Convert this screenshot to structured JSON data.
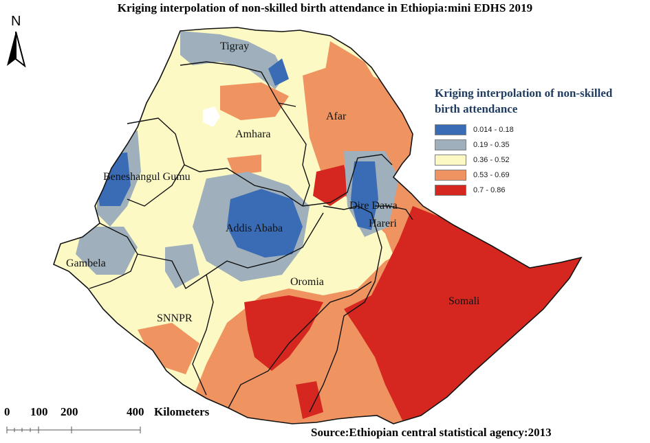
{
  "title": "Kriging interpolation of non-skilled birth attendance in Ethiopia:mini EDHS 2019",
  "north_arrow": {
    "letter": "N"
  },
  "legend": {
    "title_line1": "Kriging interpolation of non-skilled",
    "title_line2": "birth attendance",
    "items": [
      {
        "label": "0.014 - 0.18",
        "color": "#3a6cb5"
      },
      {
        "label": "0.19 - 0.35",
        "color": "#9fb0bc"
      },
      {
        "label": "0.36 - 0.52",
        "color": "#fcf9c4"
      },
      {
        "label": "0.53 - 0.69",
        "color": "#ef9461"
      },
      {
        "label": "0.7 - 0.86",
        "color": "#d5271f"
      }
    ]
  },
  "regions": [
    {
      "name": "Tigray"
    },
    {
      "name": "Afar"
    },
    {
      "name": "Amhara"
    },
    {
      "name": "Beneshangul Gumu"
    },
    {
      "name": "Dire Dawa"
    },
    {
      "name": "Hareri"
    },
    {
      "name": "Addis Ababa"
    },
    {
      "name": "Gambela"
    },
    {
      "name": "Oromia"
    },
    {
      "name": "Somali"
    },
    {
      "name": "SNNPR"
    }
  ],
  "scale_bar": {
    "ticks": [
      "0",
      "100",
      "200",
      "400"
    ],
    "unit": "Kilometers"
  },
  "source": "Source:Ethiopian central statistical agency:2013"
}
